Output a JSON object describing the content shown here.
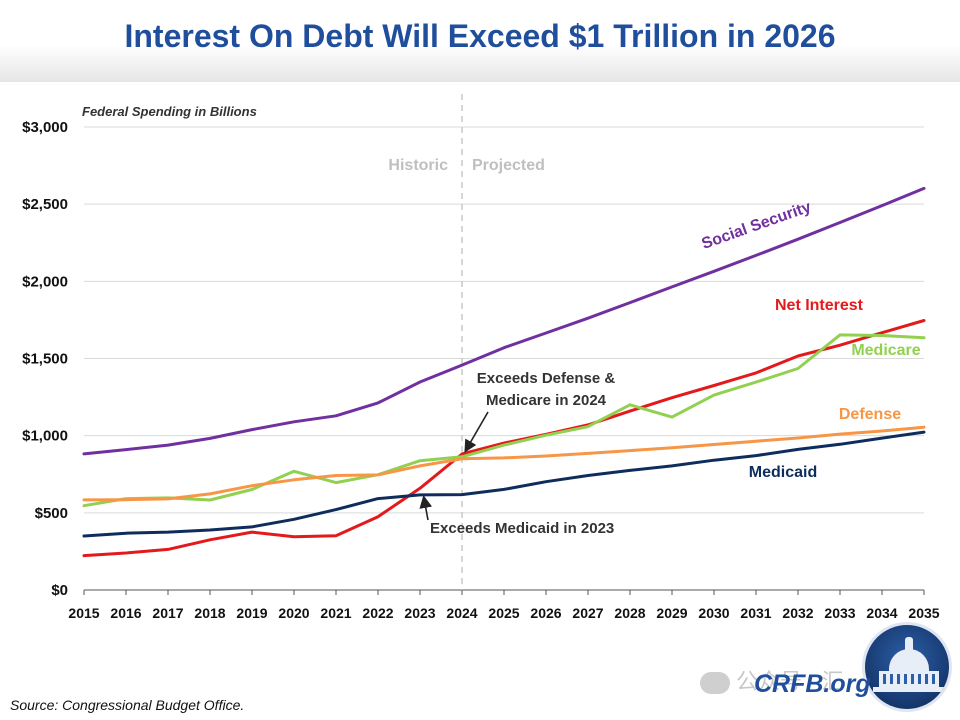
{
  "page": {
    "title": "Interest On Debt Will Exceed $1 Trillion in 2026"
  },
  "footer": {
    "source": "Source: Congressional Budget Office.",
    "logo_text": "CRFB.org",
    "watermark": "公众号 · 汇"
  },
  "chart_data": {
    "type": "line",
    "title": "Interest On Debt Will Exceed $1 Trillion in 2026",
    "ylabel": "Federal Spending in Billions",
    "x": [
      2015,
      2016,
      2017,
      2018,
      2019,
      2020,
      2021,
      2022,
      2023,
      2024,
      2025,
      2026,
      2027,
      2028,
      2029,
      2030,
      2031,
      2032,
      2033,
      2034,
      2035
    ],
    "xlim": [
      2015,
      2035
    ],
    "ylim": [
      0,
      3000
    ],
    "yticks": [
      0,
      500,
      1000,
      1500,
      2000,
      2500,
      3000
    ],
    "ytick_labels": [
      "$0",
      "$500",
      "$1,000",
      "$1,500",
      "$2,000",
      "$2,500",
      "$3,000"
    ],
    "grid": "horizontal",
    "divider": {
      "x": 2024,
      "left_label": "Historic",
      "right_label": "Projected"
    },
    "series": [
      {
        "name": "Social Security",
        "color": "#7030a0",
        "values": [
          882,
          910,
          939,
          982,
          1039,
          1090,
          1129,
          1212,
          1348,
          1457,
          1570,
          1665,
          1761,
          1862,
          1964,
          2065,
          2168,
          2273,
          2381,
          2491,
          2602
        ]
      },
      {
        "name": "Net Interest",
        "color": "#e31a1c",
        "values": [
          223,
          240,
          263,
          325,
          375,
          345,
          352,
          475,
          659,
          881,
          952,
          1009,
          1070,
          1159,
          1246,
          1325,
          1407,
          1516,
          1586,
          1667,
          1746
        ]
      },
      {
        "name": "Medicare",
        "color": "#92d050",
        "values": [
          546,
          592,
          597,
          583,
          651,
          769,
          696,
          747,
          838,
          863,
          939,
          1003,
          1059,
          1200,
          1120,
          1263,
          1347,
          1435,
          1653,
          1649,
          1634
        ]
      },
      {
        "name": "Defense",
        "color": "#f79646",
        "values": [
          584,
          585,
          590,
          623,
          676,
          714,
          742,
          746,
          804,
          850,
          856,
          868,
          885,
          903,
          922,
          943,
          964,
          985,
          1010,
          1030,
          1055
        ]
      },
      {
        "name": "Medicaid",
        "color": "#0f2d5c",
        "values": [
          350,
          368,
          375,
          389,
          409,
          458,
          521,
          592,
          616,
          618,
          652,
          702,
          742,
          775,
          804,
          841,
          871,
          911,
          944,
          984,
          1023
        ]
      }
    ],
    "annotations": [
      {
        "text_lines": [
          "Exceeds Defense &",
          "Medicare in 2024"
        ],
        "point": [
          2024,
          881
        ]
      },
      {
        "text_lines": [
          "Exceeds Medicaid in 2023"
        ],
        "point": [
          2023,
          620
        ]
      }
    ]
  }
}
